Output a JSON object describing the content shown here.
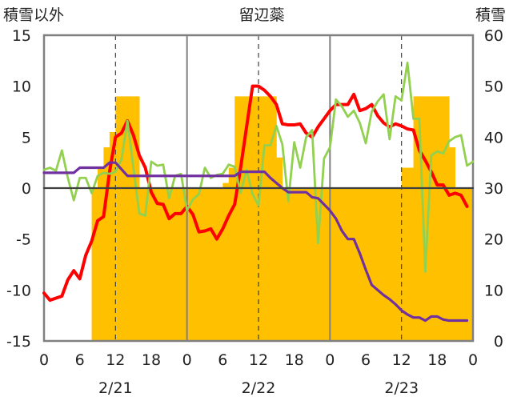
{
  "chart_data": {
    "type": "line",
    "title": "留辺蘂",
    "ylabel_left": "積雪以外",
    "ylabel_right": "積雪",
    "y_left": {
      "min": -15,
      "max": 15,
      "ticks": [
        "-15",
        "-10",
        "-5",
        "0",
        "5",
        "10",
        "15"
      ]
    },
    "y_right": {
      "min": 0,
      "max": 60,
      "ticks": [
        "0",
        "10",
        "20",
        "30",
        "40",
        "50",
        "60"
      ]
    },
    "x": {
      "min": 0,
      "max": 72,
      "unit": "hour",
      "tick_hours": [
        0,
        6,
        12,
        18,
        24,
        30,
        36,
        42,
        48,
        54,
        60,
        66,
        72
      ],
      "tick_labels": [
        "0",
        "6",
        "12",
        "18",
        "0",
        "6",
        "12",
        "18",
        "0",
        "6",
        "12",
        "18",
        "0"
      ]
    },
    "date_labels": [
      {
        "hour": 12,
        "label": "2/21"
      },
      {
        "hour": 36,
        "label": "2/22"
      },
      {
        "hour": 60,
        "label": "2/23"
      }
    ],
    "grid": {
      "vertical_dashed_at_hours": [
        12,
        36,
        60
      ],
      "day_separators_at_hours": [
        24,
        48
      ],
      "zero_line": true
    },
    "colors": {
      "snow_bars": "#FFC000",
      "red_series": "#FF0000",
      "green_series": "#92D050",
      "purple_series": "#7030A0",
      "frame": "#808080"
    },
    "snow_bars": {
      "axis": "right",
      "hours": [
        8,
        9,
        10,
        11,
        12,
        13,
        14,
        15,
        16,
        17,
        18,
        19,
        20,
        21,
        22,
        23,
        24,
        25,
        26,
        27,
        28,
        29,
        30,
        31,
        32,
        33,
        34,
        35,
        36,
        37,
        38,
        39,
        40,
        41,
        42,
        43,
        44,
        45,
        46,
        47,
        48,
        49,
        50,
        51,
        52,
        53,
        54,
        55,
        56,
        57,
        58,
        59,
        60,
        61,
        62,
        63,
        64,
        65,
        66,
        67,
        68,
        69,
        70,
        71
      ],
      "values": [
        30,
        34,
        38,
        41,
        48,
        48,
        48,
        48,
        30,
        30,
        30,
        30,
        30,
        30,
        30,
        30,
        30,
        30,
        30,
        30,
        30,
        30,
        31,
        34,
        48,
        48,
        48,
        48,
        48,
        48,
        48,
        36,
        30,
        30,
        30,
        30,
        30,
        30,
        30,
        30,
        30,
        30,
        30,
        30,
        30,
        30,
        30,
        30,
        30,
        30,
        30,
        30,
        34,
        34,
        48,
        48,
        48,
        48,
        48,
        48,
        38,
        30,
        30,
        30
      ]
    },
    "series": [
      {
        "axis": "left",
        "values": [
          [
            0,
            -10.3
          ],
          [
            1,
            -11
          ],
          [
            2,
            -10.8
          ],
          [
            3,
            -10.6
          ],
          [
            4,
            -9
          ],
          [
            5,
            -8.1
          ],
          [
            6,
            -8.9
          ],
          [
            7,
            -6.6
          ],
          [
            8,
            -5.2
          ],
          [
            9,
            -3.2
          ],
          [
            10,
            -2.8
          ],
          [
            11,
            1.6
          ],
          [
            12,
            5
          ],
          [
            13,
            5.4
          ],
          [
            14,
            6.6
          ],
          [
            15,
            5.2
          ],
          [
            16,
            3.2
          ],
          [
            17,
            2
          ],
          [
            18,
            -0.4
          ],
          [
            19,
            -1.5
          ],
          [
            20,
            -1.6
          ],
          [
            21,
            -3
          ],
          [
            22,
            -2.5
          ],
          [
            23,
            -2.5
          ],
          [
            24,
            -1.8
          ],
          [
            25,
            -2.6
          ],
          [
            26,
            -4.3
          ],
          [
            27,
            -4.2
          ],
          [
            28,
            -4
          ],
          [
            29,
            -5
          ],
          [
            30,
            -4
          ],
          [
            31,
            -2.7
          ],
          [
            32,
            -1.6
          ],
          [
            33,
            2
          ],
          [
            34,
            6
          ],
          [
            35,
            10
          ],
          [
            36,
            10
          ],
          [
            37,
            9.6
          ],
          [
            38,
            9
          ],
          [
            39,
            8.2
          ],
          [
            40,
            6.3
          ],
          [
            41,
            6.2
          ],
          [
            42,
            6.2
          ],
          [
            43,
            6.3
          ],
          [
            44,
            5.4
          ],
          [
            45,
            5
          ],
          [
            46,
            6
          ],
          [
            47,
            6.8
          ],
          [
            48,
            7.6
          ],
          [
            49,
            8.2
          ],
          [
            50,
            8.2
          ],
          [
            51,
            8.2
          ],
          [
            52,
            9.2
          ],
          [
            53,
            7.6
          ],
          [
            54,
            7.8
          ],
          [
            55,
            8.2
          ],
          [
            56,
            7.1
          ],
          [
            57,
            6.4
          ],
          [
            58,
            6
          ],
          [
            59,
            6.3
          ],
          [
            60,
            6.1
          ],
          [
            61,
            5.8
          ],
          [
            62,
            5.7
          ],
          [
            63,
            3.7
          ],
          [
            64,
            2.7
          ],
          [
            65,
            1.6
          ],
          [
            66,
            0.3
          ],
          [
            67,
            0.3
          ],
          [
            68,
            -0.7
          ],
          [
            69,
            -0.5
          ],
          [
            70,
            -0.7
          ],
          [
            71,
            -1.8
          ]
        ]
      },
      {
        "axis": "left",
        "values": [
          [
            0,
            1.8
          ],
          [
            1,
            2
          ],
          [
            2,
            1.7
          ],
          [
            3,
            3.7
          ],
          [
            4,
            1
          ],
          [
            5,
            -1.2
          ],
          [
            6,
            1
          ],
          [
            7,
            1
          ],
          [
            8,
            -0.5
          ],
          [
            9,
            1.2
          ],
          [
            10,
            1.5
          ],
          [
            11,
            1.4
          ],
          [
            12,
            1.6
          ],
          [
            13,
            2.8
          ],
          [
            14,
            6.6
          ],
          [
            15,
            2
          ],
          [
            16,
            -2.5
          ],
          [
            17,
            -2.7
          ],
          [
            18,
            2.6
          ],
          [
            19,
            2.2
          ],
          [
            20,
            2.3
          ],
          [
            21,
            -1
          ],
          [
            22,
            1.2
          ],
          [
            23,
            1.4
          ],
          [
            24,
            -2.2
          ],
          [
            25,
            -1.1
          ],
          [
            26,
            -0.6
          ],
          [
            27,
            2
          ],
          [
            28,
            1
          ],
          [
            29,
            1.3
          ],
          [
            30,
            1.4
          ],
          [
            31,
            2.3
          ],
          [
            32,
            2.1
          ],
          [
            33,
            -0.5
          ],
          [
            34,
            1.8
          ],
          [
            35,
            -0.6
          ],
          [
            36,
            -1.7
          ],
          [
            37,
            4.2
          ],
          [
            38,
            4.2
          ],
          [
            39,
            6.1
          ],
          [
            40,
            4.3
          ],
          [
            41,
            -1.3
          ],
          [
            42,
            4.5
          ],
          [
            43,
            2
          ],
          [
            44,
            5
          ],
          [
            45,
            5.7
          ],
          [
            46,
            -5.4
          ],
          [
            47,
            2.9
          ],
          [
            48,
            4
          ],
          [
            49,
            8.7
          ],
          [
            50,
            8
          ],
          [
            51,
            7
          ],
          [
            52,
            7.6
          ],
          [
            53,
            6.4
          ],
          [
            54,
            4.4
          ],
          [
            55,
            7.5
          ],
          [
            56,
            8.5
          ],
          [
            57,
            9.2
          ],
          [
            58,
            4.8
          ],
          [
            59,
            9
          ],
          [
            60,
            8.6
          ],
          [
            61,
            12.3
          ],
          [
            62,
            6.8
          ],
          [
            63,
            6.8
          ],
          [
            64,
            -8.2
          ],
          [
            65,
            3.2
          ],
          [
            66,
            3.6
          ],
          [
            67,
            3.4
          ],
          [
            68,
            4.6
          ],
          [
            69,
            5
          ],
          [
            70,
            5.2
          ],
          [
            71,
            2.2
          ],
          [
            72,
            2.6
          ]
        ]
      },
      {
        "axis": "left",
        "values": [
          [
            0,
            1.5
          ],
          [
            5,
            1.5
          ],
          [
            6,
            2
          ],
          [
            10,
            2
          ],
          [
            11,
            2.5
          ],
          [
            12,
            2.5
          ],
          [
            14,
            1.2
          ],
          [
            24,
            1.2
          ],
          [
            30,
            1.2
          ],
          [
            32,
            1.2
          ],
          [
            33,
            1.6
          ],
          [
            36,
            1.6
          ],
          [
            37,
            1.6
          ],
          [
            38,
            1
          ],
          [
            39,
            0.5
          ],
          [
            40,
            0
          ],
          [
            41,
            -0.4
          ],
          [
            44,
            -0.4
          ],
          [
            45,
            -0.9
          ],
          [
            46,
            -1
          ],
          [
            47,
            -1.6
          ],
          [
            48,
            -2.2
          ],
          [
            49,
            -3
          ],
          [
            50,
            -4.2
          ],
          [
            51,
            -5
          ],
          [
            52,
            -5
          ],
          [
            53,
            -6.4
          ],
          [
            54,
            -8
          ],
          [
            55,
            -9.5
          ],
          [
            56,
            -10
          ],
          [
            57,
            -10.5
          ],
          [
            58,
            -10.9
          ],
          [
            59,
            -11.4
          ],
          [
            60,
            -12
          ],
          [
            61,
            -12.4
          ],
          [
            62,
            -12.7
          ],
          [
            63,
            -12.7
          ],
          [
            64,
            -13
          ],
          [
            65,
            -12.6
          ],
          [
            66,
            -12.6
          ],
          [
            67,
            -12.9
          ],
          [
            68,
            -13
          ],
          [
            69,
            -13
          ],
          [
            70,
            -13
          ],
          [
            71,
            -13
          ]
        ]
      },
      {
        "axis": "right",
        "values": [
          [
            0,
            30
          ],
          [
            72,
            30
          ]
        ]
      }
    ]
  }
}
